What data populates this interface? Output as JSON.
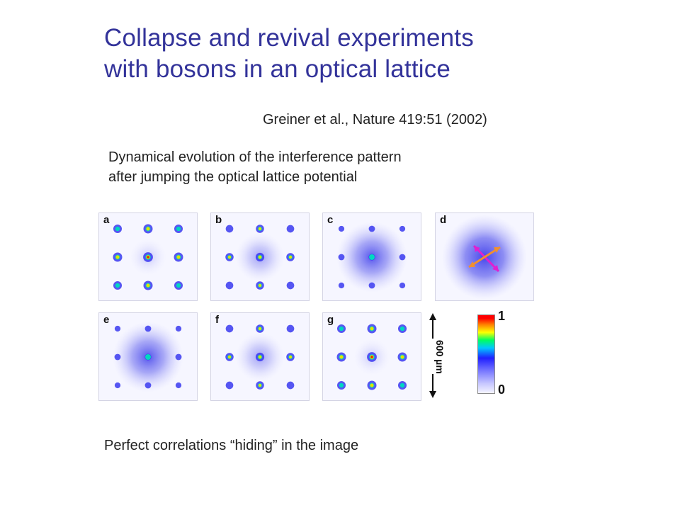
{
  "slide": {
    "title_line1": "Collapse and revival experiments",
    "title_line2": "with bosons in an optical lattice",
    "citation": "Greiner et al., Nature 419:51 (2002)",
    "subtitle_line1": "Dynamical evolution of the interference pattern",
    "subtitle_line2": "after jumping the optical lattice potential",
    "footer": "Perfect correlations “hiding” in the image"
  },
  "figure": {
    "panels": [
      {
        "label": "a",
        "visibility": 1.0
      },
      {
        "label": "b",
        "visibility": 0.75
      },
      {
        "label": "c",
        "visibility": 0.3
      },
      {
        "label": "d",
        "visibility": 0.0
      },
      {
        "label": "e",
        "visibility": 0.3
      },
      {
        "label": "f",
        "visibility": 0.75
      },
      {
        "label": "g",
        "visibility": 1.0
      }
    ],
    "scale_label": "600 µm",
    "colorbar_max": "1",
    "colorbar_min": "0"
  }
}
